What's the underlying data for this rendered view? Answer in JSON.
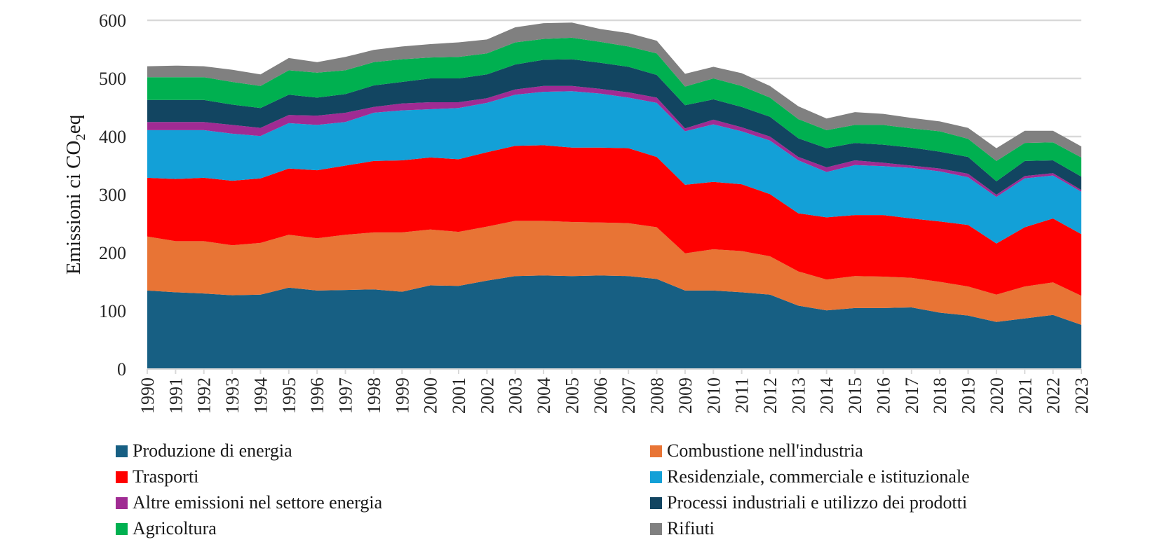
{
  "chart_data": {
    "type": "area",
    "stacked": true,
    "title": "",
    "xlabel": "",
    "ylabel": "Emissioni ci CO2eq",
    "ylabel_parts": {
      "main": "Emissioni ci CO",
      "sub": "2",
      "tail": "eq"
    },
    "ylim": [
      0,
      600
    ],
    "yticks": [
      0,
      100,
      200,
      300,
      400,
      500,
      600
    ],
    "grid": "horizontal",
    "legend_position": "bottom",
    "categories": [
      "1990",
      "1991",
      "1992",
      "1993",
      "1994",
      "1995",
      "1996",
      "1997",
      "1998",
      "1999",
      "2000",
      "2001",
      "2002",
      "2003",
      "2004",
      "2005",
      "2006",
      "2007",
      "2008",
      "2009",
      "2010",
      "2011",
      "2012",
      "2013",
      "2014",
      "2015",
      "2016",
      "2017",
      "2018",
      "2019",
      "2020",
      "2021",
      "2022",
      "2023"
    ],
    "series": [
      {
        "name": "Produzione di energia",
        "color": "#175f83",
        "values": [
          135,
          132,
          130,
          127,
          128,
          140,
          135,
          136,
          137,
          133,
          144,
          143,
          152,
          160,
          161,
          160,
          161,
          160,
          155,
          135,
          135,
          132,
          128,
          109,
          101,
          105,
          105,
          106,
          97,
          92,
          81,
          87,
          93,
          76
        ]
      },
      {
        "name": "Combustione nell'industria",
        "color": "#e87435",
        "values": [
          93,
          88,
          90,
          86,
          89,
          91,
          90,
          95,
          98,
          102,
          96,
          93,
          93,
          95,
          94,
          93,
          91,
          91,
          89,
          64,
          71,
          71,
          66,
          59,
          53,
          55,
          54,
          51,
          53,
          50,
          47,
          55,
          56,
          50
        ]
      },
      {
        "name": "Trasporti",
        "color": "#ff0000",
        "values": [
          101,
          107,
          109,
          111,
          111,
          114,
          117,
          119,
          123,
          124,
          124,
          125,
          128,
          129,
          130,
          128,
          129,
          129,
          121,
          118,
          116,
          115,
          107,
          100,
          107,
          105,
          106,
          102,
          104,
          106,
          88,
          102,
          110,
          106
        ]
      },
      {
        "name": "Residenziale, commerciale e istituzionale",
        "color": "#13a0d7",
        "values": [
          82,
          84,
          82,
          81,
          73,
          78,
          78,
          75,
          83,
          86,
          83,
          88,
          85,
          88,
          92,
          97,
          93,
          87,
          93,
          92,
          99,
          91,
          92,
          91,
          78,
          86,
          84,
          87,
          86,
          82,
          80,
          84,
          74,
          73
        ]
      },
      {
        "name": "Altre emissioni nel settore energia",
        "color": "#a02b93",
        "values": [
          14,
          14,
          14,
          15,
          14,
          14,
          16,
          16,
          10,
          12,
          12,
          10,
          8,
          9,
          10,
          9,
          8,
          9,
          9,
          5,
          8,
          7,
          7,
          6,
          8,
          8,
          6,
          4,
          5,
          6,
          4,
          4,
          4,
          3
        ]
      },
      {
        "name": "Processi industriali e utilizzo dei prodotti",
        "color": "#124561",
        "values": [
          38,
          38,
          38,
          35,
          34,
          35,
          31,
          32,
          37,
          37,
          41,
          41,
          41,
          43,
          45,
          46,
          45,
          44,
          39,
          40,
          35,
          35,
          34,
          32,
          33,
          30,
          31,
          31,
          29,
          29,
          23,
          26,
          22,
          23
        ]
      },
      {
        "name": "Agricoltura",
        "color": "#00b050",
        "values": [
          39,
          39,
          39,
          39,
          38,
          42,
          43,
          41,
          40,
          39,
          36,
          37,
          36,
          38,
          36,
          37,
          36,
          35,
          37,
          32,
          36,
          36,
          33,
          33,
          31,
          31,
          34,
          33,
          35,
          31,
          35,
          31,
          31,
          33
        ]
      },
      {
        "name": "Rifiuti",
        "color": "#808080",
        "values": [
          19,
          20,
          19,
          21,
          20,
          21,
          18,
          23,
          21,
          22,
          23,
          25,
          24,
          26,
          27,
          26,
          22,
          23,
          22,
          22,
          20,
          22,
          20,
          22,
          20,
          22,
          19,
          18,
          17,
          19,
          22,
          21,
          20,
          19
        ]
      }
    ]
  },
  "legend": {
    "items": [
      {
        "label": "Produzione di energia",
        "color": "#175f83"
      },
      {
        "label": "Combustione nell'industria",
        "color": "#e87435"
      },
      {
        "label": "Trasporti",
        "color": "#ff0000"
      },
      {
        "label": "Residenziale, commerciale e istituzionale",
        "color": "#13a0d7"
      },
      {
        "label": "Altre emissioni nel settore energia",
        "color": "#a02b93"
      },
      {
        "label": "Processi industriali e utilizzo dei prodotti",
        "color": "#124561"
      },
      {
        "label": "Agricoltura",
        "color": "#00b050"
      },
      {
        "label": "Rifiuti",
        "color": "#808080"
      }
    ]
  }
}
